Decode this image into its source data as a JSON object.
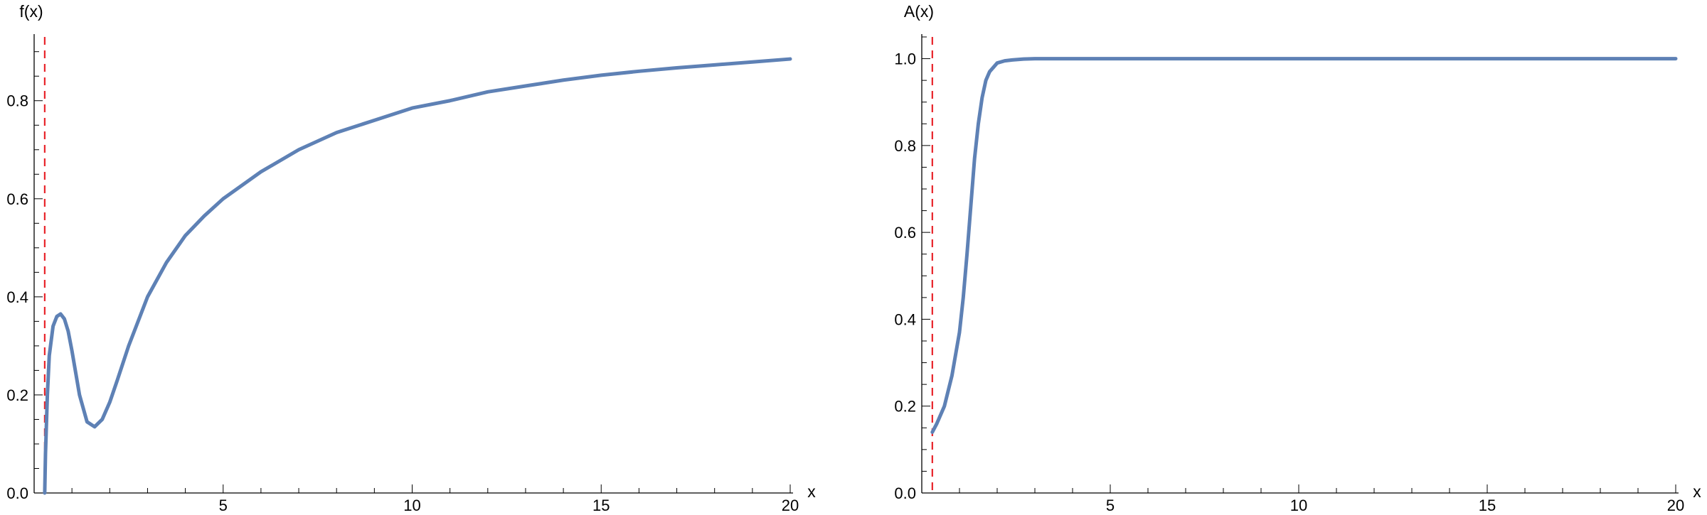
{
  "chart_data": [
    {
      "type": "line",
      "ylabel": "f(x)",
      "xlabel": "x",
      "xlim": [
        0,
        20
      ],
      "ylim": [
        0,
        0.93
      ],
      "x_ticks": [
        5,
        10,
        15,
        20
      ],
      "x_tick_labels": [
        "5",
        "10",
        "15",
        "20"
      ],
      "y_ticks": [
        0,
        0.2,
        0.4,
        0.6,
        0.8
      ],
      "y_tick_labels": [
        "0.0",
        "0.2",
        "0.4",
        "0.6",
        "0.8"
      ],
      "asymptote_x": 0.28,
      "series": [
        {
          "color": "#5E81B5",
          "x": [
            0.28,
            0.3,
            0.35,
            0.4,
            0.5,
            0.6,
            0.7,
            0.8,
            0.9,
            1.0,
            1.2,
            1.4,
            1.6,
            1.8,
            2.0,
            2.2,
            2.5,
            3.0,
            3.5,
            4.0,
            4.5,
            5.0,
            6.0,
            7.0,
            8.0,
            9.0,
            10.0,
            11.0,
            12.0,
            13.0,
            14.0,
            15.0,
            16.0,
            17.0,
            18.0,
            19.0,
            20.0
          ],
          "y": [
            0.0,
            0.08,
            0.2,
            0.28,
            0.34,
            0.36,
            0.365,
            0.355,
            0.33,
            0.29,
            0.2,
            0.145,
            0.135,
            0.15,
            0.185,
            0.23,
            0.3,
            0.4,
            0.47,
            0.525,
            0.565,
            0.6,
            0.655,
            0.7,
            0.735,
            0.76,
            0.785,
            0.8,
            0.818,
            0.83,
            0.842,
            0.852,
            0.86,
            0.867,
            0.873,
            0.879,
            0.885
          ]
        }
      ]
    },
    {
      "type": "line",
      "ylabel": "A(x)",
      "xlabel": "x",
      "xlim": [
        0,
        20
      ],
      "ylim": [
        0,
        1.05
      ],
      "x_ticks": [
        5,
        10,
        15,
        20
      ],
      "x_tick_labels": [
        "5",
        "10",
        "15",
        "20"
      ],
      "y_ticks": [
        0,
        0.2,
        0.4,
        0.6,
        0.8,
        1.0
      ],
      "y_tick_labels": [
        "0.0",
        "0.2",
        "0.4",
        "0.6",
        "0.8",
        "1.0"
      ],
      "asymptote_x": 0.28,
      "series": [
        {
          "color": "#5E81B5",
          "x": [
            0.28,
            0.4,
            0.6,
            0.8,
            1.0,
            1.1,
            1.2,
            1.3,
            1.4,
            1.5,
            1.6,
            1.7,
            1.8,
            1.9,
            2.0,
            2.2,
            2.4,
            2.7,
            3.0,
            4.0,
            5.0,
            10.0,
            15.0,
            20.0
          ],
          "y": [
            0.14,
            0.16,
            0.2,
            0.27,
            0.37,
            0.45,
            0.55,
            0.66,
            0.77,
            0.85,
            0.91,
            0.95,
            0.97,
            0.98,
            0.99,
            0.995,
            0.997,
            0.999,
            1.0,
            1.0,
            1.0,
            1.0,
            1.0,
            1.0
          ]
        }
      ]
    }
  ]
}
